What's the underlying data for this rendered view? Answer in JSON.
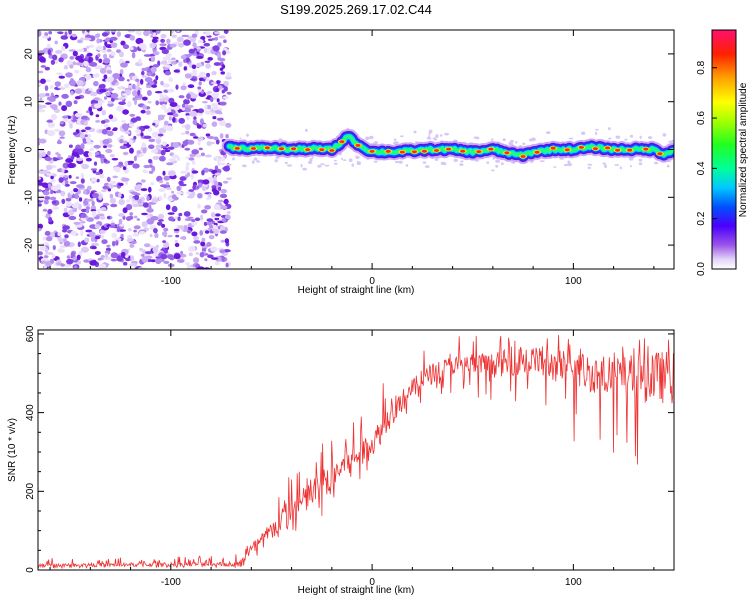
{
  "title": "S199.2025.269.17.02.C44",
  "chart_data": [
    {
      "type": "heatmap",
      "name": "spectrogram",
      "xlabel": "Height of straight line (km)",
      "ylabel": "Frequency (Hz)",
      "xlim": [
        -166,
        150
      ],
      "ylim": [
        -25,
        25
      ],
      "xticks": [
        -100,
        0,
        100
      ],
      "yticks": [
        -20,
        -10,
        0,
        10,
        20
      ],
      "noise_region_x": [
        -166,
        -71
      ],
      "signal_start_x": -71,
      "signal_track": {
        "x": [
          -71,
          -60,
          -50,
          -40,
          -30,
          -20,
          -15,
          -12,
          -10,
          -5,
          0,
          10,
          20,
          30,
          40,
          50,
          60,
          70,
          75,
          80,
          90,
          100,
          110,
          120,
          130,
          140,
          145,
          150
        ],
        "y": [
          0.5,
          0.2,
          0.3,
          0.0,
          0.2,
          0.0,
          1.5,
          3.0,
          2.0,
          0.5,
          -0.5,
          -0.5,
          -0.3,
          0.0,
          0.0,
          -0.5,
          0.0,
          -1.0,
          -1.2,
          -0.5,
          0.0,
          0.0,
          0.5,
          0.0,
          0.0,
          0.0,
          -1.0,
          0.0
        ]
      },
      "colorbar": {
        "label": "Normalized spectral amplitude",
        "ticks": [
          "0.0",
          "0.2",
          "0.4",
          "0.6",
          "0.8"
        ],
        "tick_values": [
          0.0,
          0.2,
          0.4,
          0.6,
          0.8
        ],
        "range": [
          0,
          0.95
        ]
      }
    },
    {
      "type": "line",
      "name": "snr",
      "xlabel": "Height of straight line (km)",
      "ylabel": "SNR (10 * v/v)",
      "xlim": [
        -166,
        150
      ],
      "ylim": [
        0,
        610
      ],
      "xticks": [
        -100,
        0,
        100
      ],
      "yticks": [
        0,
        200,
        400,
        600
      ],
      "color": "#ee3333",
      "envelope": {
        "x": [
          -166,
          -100,
          -70,
          -66,
          -60,
          -50,
          -40,
          -30,
          -20,
          -10,
          0,
          10,
          20,
          30,
          40,
          50,
          60,
          70,
          80,
          90,
          100,
          110,
          120,
          130,
          140,
          150
        ],
        "low": [
          5,
          5,
          5,
          5,
          10,
          40,
          70,
          100,
          140,
          200,
          260,
          350,
          410,
          440,
          450,
          440,
          420,
          400,
          390,
          360,
          320,
          300,
          270,
          240,
          210,
          200
        ],
        "mid": [
          12,
          14,
          15,
          15,
          50,
          100,
          150,
          190,
          240,
          280,
          320,
          400,
          460,
          500,
          520,
          520,
          520,
          530,
          530,
          520,
          510,
          500,
          490,
          490,
          490,
          490
        ],
        "high": [
          30,
          35,
          40,
          45,
          110,
          190,
          260,
          320,
          360,
          420,
          460,
          530,
          560,
          590,
          600,
          600,
          600,
          600,
          600,
          600,
          600,
          590,
          590,
          590,
          590,
          590
        ]
      }
    }
  ]
}
